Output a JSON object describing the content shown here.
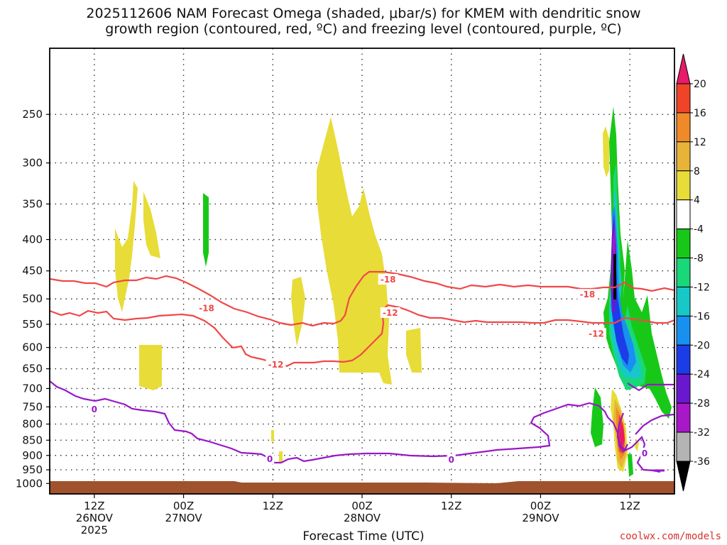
{
  "chart_data": {
    "type": "heatmap",
    "title_line1": "2025112606 NAM Forecast Omega (shaded, μbar/s) for KMEM with dendritic snow",
    "title_line2": "growth region (contoured, red, ºC) and freezing level (contoured, purple, ºC)",
    "xlabel": "Forecast Time (UTC)",
    "credit": "coolwx.com/models",
    "y_axis": {
      "scale": "log-pressure",
      "inverted": true,
      "ticks": [
        "250",
        "300",
        "350",
        "400",
        "450",
        "500",
        "550",
        "600",
        "650",
        "700",
        "750",
        "800",
        "850",
        "900",
        "950",
        "1000"
      ],
      "range_hpa": [
        1040,
        195
      ]
    },
    "x_axis": {
      "range_hours": [
        6,
        90
      ],
      "ticks": [
        {
          "hour": 12,
          "l1": "12Z",
          "l2": "26NOV",
          "l3": "2025"
        },
        {
          "hour": 24,
          "l1": "00Z",
          "l2": "27NOV",
          "l3": ""
        },
        {
          "hour": 36,
          "l1": "12Z",
          "l2": "",
          "l3": ""
        },
        {
          "hour": 48,
          "l1": "00Z",
          "l2": "28NOV",
          "l3": ""
        },
        {
          "hour": 60,
          "l1": "12Z",
          "l2": "",
          "l3": ""
        },
        {
          "hour": 72,
          "l1": "00Z",
          "l2": "29NOV",
          "l3": ""
        },
        {
          "hour": 84,
          "l1": "12Z",
          "l2": "",
          "l3": ""
        }
      ]
    },
    "grid": true,
    "colorbar": {
      "labels": [
        "20",
        "16",
        "12",
        "8",
        "4",
        "-4",
        "-8",
        "-12",
        "-16",
        "-20",
        "-24",
        "-28",
        "-32",
        "-36"
      ],
      "colors": [
        "#e81a6a",
        "#f04428",
        "#f08a28",
        "#e8b438",
        "#e8dc38",
        "#ffffff",
        "#18c818",
        "#18d878",
        "#18c8c8",
        "#1890f0",
        "#1c3ce8",
        "#6a18d0",
        "#a818c8",
        "#b4b4b4",
        "#000000"
      ]
    },
    "contour_labels": [
      {
        "text": "-18",
        "color": "#f04848",
        "hour": 27.1,
        "p": 518
      },
      {
        "text": "-18",
        "color": "#f04848",
        "hour": 51.5,
        "p": 465
      },
      {
        "text": "-18",
        "color": "#f04848",
        "hour": 78.3,
        "p": 492
      },
      {
        "text": "-12",
        "color": "#f04848",
        "hour": 51.8,
        "p": 527
      },
      {
        "text": "-12",
        "color": "#f04848",
        "hour": 79.5,
        "p": 570
      },
      {
        "text": "-12",
        "color": "#f04848",
        "hour": 36.4,
        "p": 640
      },
      {
        "text": "0",
        "color": "#9818c8",
        "hour": 12.0,
        "p": 757
      },
      {
        "text": "0",
        "color": "#9818c8",
        "hour": 35.6,
        "p": 913
      },
      {
        "text": "0",
        "color": "#9818c8",
        "hour": 60.0,
        "p": 915
      },
      {
        "text": "0",
        "color": "#9818c8",
        "hour": 86.0,
        "p": 893
      }
    ]
  }
}
